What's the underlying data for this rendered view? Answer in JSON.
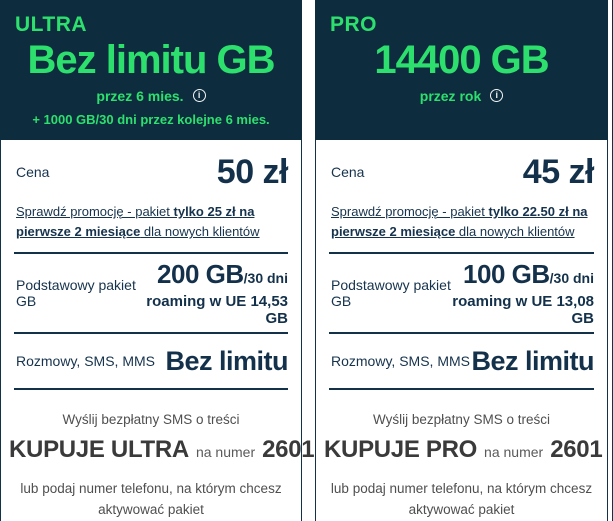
{
  "ui": {
    "info_icon_glyph": "i",
    "colors": {
      "header_bg": "#0d2c3d",
      "accent_green": "#2de06e",
      "text_navy": "#16334d"
    }
  },
  "cards": [
    {
      "plan": "ULTRA",
      "headline": "Bez limitu GB",
      "period": "przez 6 mies.",
      "period_note": "+ 1000 GB/30 dni przez kolejne 6 mies.",
      "price_label": "Cena",
      "price": "50 zł",
      "promo": {
        "pre": "Sprawdź promocję - pakiet ",
        "bold": "tylko 25 zł na pierwsze 2 miesiące",
        "post": " dla nowych klientów"
      },
      "data_label": "Podstawowy pakiet GB",
      "data_amount": "200 GB",
      "data_suffix": "/30 dni",
      "roaming": "roaming w UE 14,53 GB",
      "calls_label": "Rozmowy, SMS, MMS",
      "calls_value": "Bez limitu",
      "sms_intro": "Wyślij bezpłatny SMS o treści",
      "sms_code": "KUPUJE ULTRA",
      "sms_mid": "na numer",
      "sms_number": "2601",
      "sms_note_line1": "lub podaj numer telefonu, na którym chcesz",
      "sms_note_line2": "aktywować pakiet"
    },
    {
      "plan": "PRO",
      "headline": "14400 GB",
      "period": "przez rok",
      "period_note": "",
      "price_label": "Cena",
      "price": "45 zł",
      "promo": {
        "pre": "Sprawdź promocję - pakiet ",
        "bold": "tylko 22.50 zł na pierwsze 2 miesiące",
        "post": " dla nowych klientów"
      },
      "data_label": "Podstawowy pakiet GB",
      "data_amount": "100 GB",
      "data_suffix": "/30 dni",
      "roaming": "roaming w UE 13,08 GB",
      "calls_label": "Rozmowy, SMS, MMS",
      "calls_value": "Bez limitu",
      "sms_intro": "Wyślij bezpłatny SMS o treści",
      "sms_code": "KUPUJE PRO",
      "sms_mid": "na numer",
      "sms_number": "2601",
      "sms_note_line1": "lub podaj numer telefonu, na którym chcesz",
      "sms_note_line2": "aktywować pakiet"
    }
  ]
}
